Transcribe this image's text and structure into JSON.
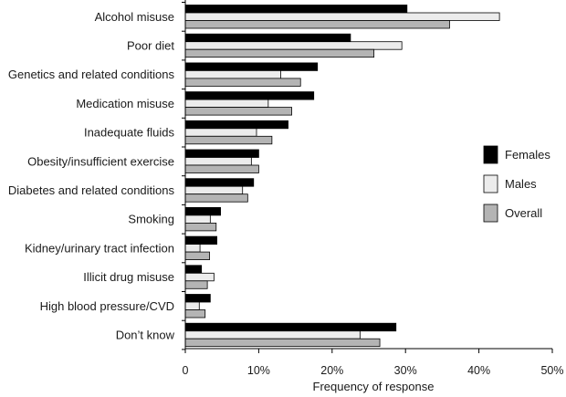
{
  "chart_data": {
    "type": "bar",
    "orientation": "horizontal",
    "categories": [
      "Alcohol misuse",
      "Poor diet",
      "Genetics and related conditions",
      "Medication misuse",
      "Inadequate fluids",
      "Obesity/insufficient exercise",
      "Diabetes and related conditions",
      "Smoking",
      "Kidney/urinary tract infection",
      "Illicit drug misuse",
      "High blood pressure/CVD",
      "Don’t know"
    ],
    "series": [
      {
        "name": "Females",
        "color": "#000000",
        "values": [
          30.2,
          22.5,
          18.0,
          17.5,
          14.0,
          10.0,
          9.3,
          4.8,
          4.3,
          2.2,
          3.4,
          28.7
        ]
      },
      {
        "name": "Males",
        "color": "#ececec",
        "values": [
          42.8,
          29.5,
          13.0,
          11.3,
          9.7,
          9.0,
          7.8,
          3.4,
          2.0,
          3.9,
          1.9,
          23.8
        ]
      },
      {
        "name": "Overall",
        "color": "#b4b4b4",
        "values": [
          36.0,
          25.7,
          15.7,
          14.5,
          11.8,
          10.0,
          8.5,
          4.2,
          3.3,
          3.0,
          2.7,
          26.5
        ]
      }
    ],
    "xlim": [
      0,
      50
    ],
    "xticks": [
      "0",
      "10%",
      "20%",
      "30%",
      "40%",
      "50%"
    ],
    "xlabel": "Frequency of response",
    "ylabel": "",
    "legend_position": "right",
    "grid": false
  }
}
